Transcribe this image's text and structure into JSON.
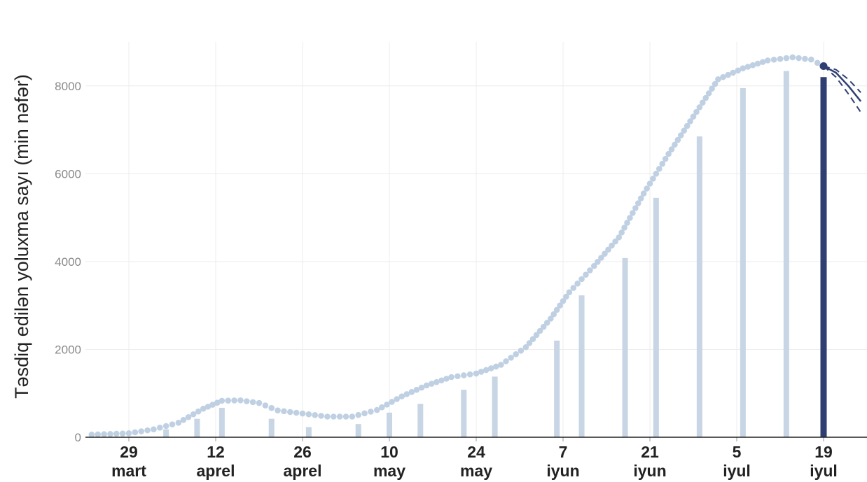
{
  "chart_data": {
    "type": "bar",
    "ylabel": "Təsdiq edilən yoluxma sayı (min nəfər)",
    "xlabel": "",
    "ylim": [
      0,
      9000
    ],
    "yticks": [
      0,
      2000,
      4000,
      6000,
      8000
    ],
    "grid": true,
    "xticks": [
      {
        "date": "2020-03-29",
        "day": "29",
        "month": "mart"
      },
      {
        "date": "2020-04-12",
        "day": "12",
        "month": "aprel"
      },
      {
        "date": "2020-04-26",
        "day": "26",
        "month": "aprel"
      },
      {
        "date": "2020-05-10",
        "day": "10",
        "month": "may"
      },
      {
        "date": "2020-05-24",
        "day": "24",
        "month": "may"
      },
      {
        "date": "2020-06-07",
        "day": "7",
        "month": "iyun"
      },
      {
        "date": "2020-06-21",
        "day": "21",
        "month": "iyun"
      },
      {
        "date": "2020-07-05",
        "day": "5",
        "month": "iyul"
      },
      {
        "date": "2020-07-19",
        "day": "19",
        "month": "iyul"
      }
    ],
    "bars": [
      {
        "date": "2020-04-04",
        "value": 180
      },
      {
        "date": "2020-04-09",
        "value": 420
      },
      {
        "date": "2020-04-13",
        "value": 670
      },
      {
        "date": "2020-04-21",
        "value": 420
      },
      {
        "date": "2020-04-27",
        "value": 230
      },
      {
        "date": "2020-05-05",
        "value": 300
      },
      {
        "date": "2020-05-10",
        "value": 560
      },
      {
        "date": "2020-05-15",
        "value": 760
      },
      {
        "date": "2020-05-22",
        "value": 1080
      },
      {
        "date": "2020-05-27",
        "value": 1380
      },
      {
        "date": "2020-06-06",
        "value": 2200
      },
      {
        "date": "2020-06-10",
        "value": 3230
      },
      {
        "date": "2020-06-17",
        "value": 4080
      },
      {
        "date": "2020-06-22",
        "value": 5450
      },
      {
        "date": "2020-06-29",
        "value": 6850
      },
      {
        "date": "2020-07-06",
        "value": 7950
      },
      {
        "date": "2020-07-13",
        "value": 8340
      },
      {
        "date": "2020-07-19",
        "value": 8200,
        "highlight": true
      }
    ],
    "trend": [
      {
        "date": "2020-03-23",
        "value": 60
      },
      {
        "date": "2020-03-29",
        "value": 90
      },
      {
        "date": "2020-04-02",
        "value": 180
      },
      {
        "date": "2020-04-06",
        "value": 330
      },
      {
        "date": "2020-04-10",
        "value": 650
      },
      {
        "date": "2020-04-13",
        "value": 830
      },
      {
        "date": "2020-04-16",
        "value": 840
      },
      {
        "date": "2020-04-19",
        "value": 780
      },
      {
        "date": "2020-04-22",
        "value": 610
      },
      {
        "date": "2020-04-26",
        "value": 540
      },
      {
        "date": "2020-04-30",
        "value": 470
      },
      {
        "date": "2020-05-04",
        "value": 470
      },
      {
        "date": "2020-05-08",
        "value": 620
      },
      {
        "date": "2020-05-12",
        "value": 930
      },
      {
        "date": "2020-05-16",
        "value": 1180
      },
      {
        "date": "2020-05-20",
        "value": 1370
      },
      {
        "date": "2020-05-24",
        "value": 1450
      },
      {
        "date": "2020-05-28",
        "value": 1650
      },
      {
        "date": "2020-06-01",
        "value": 2050
      },
      {
        "date": "2020-06-05",
        "value": 2700
      },
      {
        "date": "2020-06-08",
        "value": 3300
      },
      {
        "date": "2020-06-12",
        "value": 3900
      },
      {
        "date": "2020-06-16",
        "value": 4550
      },
      {
        "date": "2020-06-20",
        "value": 5550
      },
      {
        "date": "2020-06-24",
        "value": 6450
      },
      {
        "date": "2020-06-28",
        "value": 7300
      },
      {
        "date": "2020-07-02",
        "value": 8150
      },
      {
        "date": "2020-07-06",
        "value": 8400
      },
      {
        "date": "2020-07-10",
        "value": 8580
      },
      {
        "date": "2020-07-14",
        "value": 8650
      },
      {
        "date": "2020-07-17",
        "value": 8600
      },
      {
        "date": "2020-07-19",
        "value": 8450
      }
    ],
    "forecast": [
      {
        "date": "2020-07-19",
        "value": 8450
      },
      {
        "date": "2020-07-21",
        "value": 8300
      },
      {
        "date": "2020-07-23",
        "value": 8000
      },
      {
        "date": "2020-07-25",
        "value": 7650
      }
    ],
    "forecast_upper": [
      {
        "date": "2020-07-19",
        "value": 8450
      },
      {
        "date": "2020-07-21",
        "value": 8370
      },
      {
        "date": "2020-07-23",
        "value": 8150
      },
      {
        "date": "2020-07-25",
        "value": 7850
      }
    ],
    "forecast_lower": [
      {
        "date": "2020-07-19",
        "value": 8450
      },
      {
        "date": "2020-07-21",
        "value": 8200
      },
      {
        "date": "2020-07-23",
        "value": 7820
      },
      {
        "date": "2020-07-25",
        "value": 7400
      }
    ],
    "colors": {
      "bar": "#c7d5e4",
      "bar_highlight": "#2f3f72",
      "trend": "#c0d0e3",
      "forecast": "#2f3f72",
      "grid": "#ececec",
      "axis": "#222222"
    }
  }
}
